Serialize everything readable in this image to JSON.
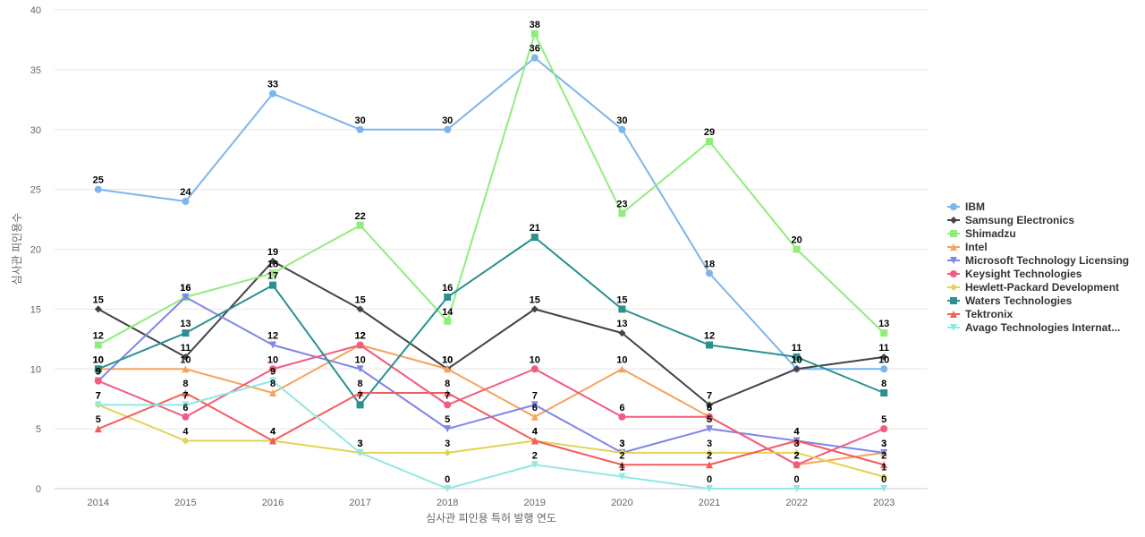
{
  "chart_data": {
    "type": "line",
    "title": "",
    "xlabel": "심사관 피인용 특허 발행 연도",
    "ylabel": "심사관 피인용수",
    "ylim": [
      0,
      40
    ],
    "yticks": [
      0,
      5,
      10,
      15,
      20,
      25,
      30,
      35,
      40
    ],
    "grid": true,
    "legend_position": "right",
    "categories": [
      "2014",
      "2015",
      "2016",
      "2017",
      "2018",
      "2019",
      "2020",
      "2021",
      "2022",
      "2023"
    ],
    "series": [
      {
        "name": "IBM",
        "color": "#7cb5ec",
        "marker": "circle",
        "values": [
          25,
          24,
          33,
          30,
          30,
          36,
          30,
          18,
          10,
          10
        ]
      },
      {
        "name": "Samsung Electronics",
        "color": "#434348",
        "marker": "diamond",
        "values": [
          15,
          11,
          19,
          15,
          10,
          15,
          13,
          7,
          10,
          11
        ]
      },
      {
        "name": "Shimadzu",
        "color": "#90ed7d",
        "marker": "square",
        "values": [
          12,
          16,
          18,
          22,
          14,
          38,
          23,
          29,
          20,
          13
        ]
      },
      {
        "name": "Intel",
        "color": "#f7a35c",
        "marker": "triangle",
        "values": [
          10,
          10,
          8,
          12,
          10,
          6,
          10,
          6,
          2,
          3
        ]
      },
      {
        "name": "Microsoft Technology Licensing",
        "color": "#8085e9",
        "marker": "triangle-down",
        "values": [
          9,
          16,
          12,
          10,
          5,
          7,
          3,
          5,
          4,
          3
        ]
      },
      {
        "name": "Keysight Technologies",
        "color": "#f15c80",
        "marker": "circle",
        "values": [
          9,
          6,
          10,
          12,
          7,
          10,
          6,
          6,
          2,
          5
        ]
      },
      {
        "name": "Hewlett-Packard Development",
        "color": "#e4d354",
        "marker": "diamond",
        "values": [
          7,
          4,
          4,
          3,
          3,
          4,
          3,
          3,
          3,
          1
        ]
      },
      {
        "name": "Waters Technologies",
        "color": "#2b908f",
        "marker": "square",
        "values": [
          10,
          13,
          17,
          7,
          16,
          21,
          15,
          12,
          11,
          8
        ]
      },
      {
        "name": "Tektronix",
        "color": "#f45b5b",
        "marker": "triangle",
        "values": [
          5,
          8,
          4,
          8,
          8,
          4,
          2,
          2,
          4,
          2
        ]
      },
      {
        "name": "Avago Technologies Internat...",
        "color": "#91e8e1",
        "marker": "triangle-down",
        "values": [
          7,
          7,
          9,
          3,
          0,
          2,
          1,
          0,
          0,
          0
        ]
      }
    ]
  }
}
